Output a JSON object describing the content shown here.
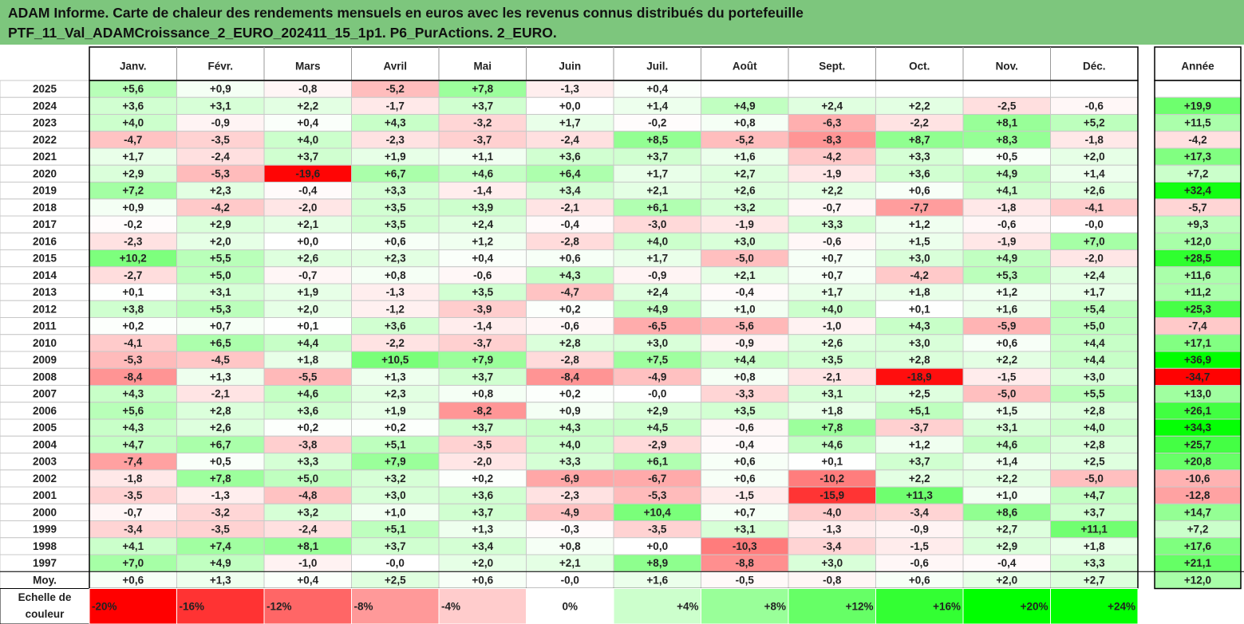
{
  "title": {
    "line1": "ADAM Informe. Carte de chaleur des rendements mensuels en euros avec les revenus connus distribués du portefeuille",
    "line2": "PTF_11_Val_ADAMCroissance_2_EURO_202411_15_1p1. P6_PurActions. 2_EURO."
  },
  "chart_data": {
    "type": "heatmap",
    "columns": [
      "Janv.",
      "Févr.",
      "Mars",
      "Avril",
      "Mai",
      "Juin",
      "Juil.",
      "Août",
      "Sept.",
      "Oct.",
      "Nov.",
      "Déc."
    ],
    "annual_column": "Année",
    "rows": [
      {
        "year": "2025",
        "values": [
          "+5,6",
          "+0,9",
          "-0,8",
          "-5,2",
          "+7,8",
          "-1,3",
          "+0,4",
          "",
          "",
          "",
          "",
          ""
        ],
        "annual": ""
      },
      {
        "year": "2024",
        "values": [
          "+3,6",
          "+3,1",
          "+2,2",
          "-1,7",
          "+3,7",
          "+0,0",
          "+1,4",
          "+4,9",
          "+2,4",
          "+2,2",
          "-2,5",
          "-0,6"
        ],
        "annual": "+19,9"
      },
      {
        "year": "2023",
        "values": [
          "+4,0",
          "-0,9",
          "+0,4",
          "+4,3",
          "-3,2",
          "+1,7",
          "-0,2",
          "+0,8",
          "-6,3",
          "-2,2",
          "+8,1",
          "+5,2"
        ],
        "annual": "+11,5"
      },
      {
        "year": "2022",
        "values": [
          "-4,7",
          "-3,5",
          "+4,0",
          "-2,3",
          "-3,7",
          "-2,4",
          "+8,5",
          "-5,2",
          "-8,3",
          "+8,7",
          "+8,3",
          "-1,8"
        ],
        "annual": "-4,2"
      },
      {
        "year": "2021",
        "values": [
          "+1,7",
          "-2,4",
          "+3,7",
          "+1,9",
          "+1,1",
          "+3,6",
          "+3,7",
          "+1,6",
          "-4,2",
          "+3,3",
          "+0,5",
          "+2,0"
        ],
        "annual": "+17,3"
      },
      {
        "year": "2020",
        "values": [
          "+2,9",
          "-5,3",
          "-19,6",
          "+6,7",
          "+4,6",
          "+6,4",
          "+1,7",
          "+2,7",
          "-1,9",
          "+3,6",
          "+4,9",
          "+1,4"
        ],
        "annual": "+7,2"
      },
      {
        "year": "2019",
        "values": [
          "+7,2",
          "+2,3",
          "-0,4",
          "+3,3",
          "-1,4",
          "+3,4",
          "+2,1",
          "+2,6",
          "+2,2",
          "+0,6",
          "+4,1",
          "+2,6"
        ],
        "annual": "+32,4"
      },
      {
        "year": "2018",
        "values": [
          "+0,9",
          "-4,2",
          "-2,0",
          "+3,5",
          "+3,9",
          "-2,1",
          "+6,1",
          "+3,2",
          "-0,7",
          "-7,7",
          "-1,8",
          "-4,1"
        ],
        "annual": "-5,7"
      },
      {
        "year": "2017",
        "values": [
          "-0,2",
          "+2,9",
          "+2,1",
          "+3,5",
          "+2,4",
          "-0,4",
          "-3,0",
          "-1,9",
          "+3,3",
          "+1,2",
          "-0,6",
          "-0,0"
        ],
        "annual": "+9,3"
      },
      {
        "year": "2016",
        "values": [
          "-2,3",
          "+2,0",
          "+0,0",
          "+0,6",
          "+1,2",
          "-2,8",
          "+4,0",
          "+3,0",
          "-0,6",
          "+1,5",
          "-1,9",
          "+7,0"
        ],
        "annual": "+12,0"
      },
      {
        "year": "2015",
        "values": [
          "+10,2",
          "+5,5",
          "+2,6",
          "+2,3",
          "+0,4",
          "+0,6",
          "+1,7",
          "-5,0",
          "+0,7",
          "+3,0",
          "+4,9",
          "-2,0"
        ],
        "annual": "+28,5"
      },
      {
        "year": "2014",
        "values": [
          "-2,7",
          "+5,0",
          "-0,7",
          "+0,8",
          "-0,6",
          "+4,3",
          "-0,9",
          "+2,1",
          "+0,7",
          "-4,2",
          "+5,3",
          "+2,4"
        ],
        "annual": "+11,6"
      },
      {
        "year": "2013",
        "values": [
          "+0,1",
          "+3,1",
          "+1,9",
          "-1,3",
          "+3,5",
          "-4,7",
          "+2,4",
          "-0,4",
          "+1,7",
          "+1,8",
          "+1,2",
          "+1,7"
        ],
        "annual": "+11,2"
      },
      {
        "year": "2012",
        "values": [
          "+3,8",
          "+5,3",
          "+2,0",
          "-1,2",
          "-3,9",
          "+0,2",
          "+4,9",
          "+1,0",
          "+4,0",
          "+0,1",
          "+1,6",
          "+5,4"
        ],
        "annual": "+25,3"
      },
      {
        "year": "2011",
        "values": [
          "+0,2",
          "+0,7",
          "+0,1",
          "+3,6",
          "-1,4",
          "-0,6",
          "-6,5",
          "-5,6",
          "-1,0",
          "+4,3",
          "-5,9",
          "+5,0"
        ],
        "annual": "-7,4"
      },
      {
        "year": "2010",
        "values": [
          "-4,1",
          "+6,5",
          "+4,4",
          "-2,2",
          "-3,7",
          "+2,8",
          "+3,0",
          "-0,9",
          "+2,6",
          "+3,0",
          "+0,6",
          "+4,4"
        ],
        "annual": "+17,1"
      },
      {
        "year": "2009",
        "values": [
          "-5,3",
          "-4,5",
          "+1,8",
          "+10,5",
          "+7,9",
          "-2,8",
          "+7,5",
          "+4,4",
          "+3,5",
          "+2,8",
          "+2,2",
          "+4,4"
        ],
        "annual": "+36,9"
      },
      {
        "year": "2008",
        "values": [
          "-8,4",
          "+1,3",
          "-5,5",
          "+1,3",
          "+3,7",
          "-8,4",
          "-4,9",
          "+0,8",
          "-2,1",
          "-18,9",
          "-1,5",
          "+3,0"
        ],
        "annual": "-34,7"
      },
      {
        "year": "2007",
        "values": [
          "+4,3",
          "-2,1",
          "+4,6",
          "+2,3",
          "+0,8",
          "+0,2",
          "-0,0",
          "-3,3",
          "+3,1",
          "+2,5",
          "-5,0",
          "+5,5"
        ],
        "annual": "+13,0"
      },
      {
        "year": "2006",
        "values": [
          "+5,6",
          "+2,8",
          "+3,6",
          "+1,9",
          "-8,2",
          "+0,9",
          "+2,9",
          "+3,5",
          "+1,8",
          "+5,1",
          "+1,5",
          "+2,8"
        ],
        "annual": "+26,1"
      },
      {
        "year": "2005",
        "values": [
          "+4,3",
          "+2,6",
          "+0,2",
          "+0,2",
          "+3,7",
          "+4,3",
          "+4,5",
          "-0,6",
          "+7,8",
          "-3,7",
          "+3,1",
          "+4,0"
        ],
        "annual": "+34,3"
      },
      {
        "year": "2004",
        "values": [
          "+4,7",
          "+6,7",
          "-3,8",
          "+5,1",
          "-3,5",
          "+4,0",
          "-2,9",
          "-0,4",
          "+4,6",
          "+1,2",
          "+4,6",
          "+2,8"
        ],
        "annual": "+25,7"
      },
      {
        "year": "2003",
        "values": [
          "-7,4",
          "+0,5",
          "+3,3",
          "+7,9",
          "-2,0",
          "+3,3",
          "+6,1",
          "+0,6",
          "+0,1",
          "+3,7",
          "+1,4",
          "+2,5"
        ],
        "annual": "+20,8"
      },
      {
        "year": "2002",
        "values": [
          "-1,8",
          "+7,8",
          "+5,0",
          "+3,2",
          "+0,2",
          "-6,9",
          "-6,7",
          "+0,6",
          "-10,2",
          "+2,2",
          "+2,2",
          "-5,0"
        ],
        "annual": "-10,6"
      },
      {
        "year": "2001",
        "values": [
          "-3,5",
          "-1,3",
          "-4,8",
          "+3,0",
          "+3,6",
          "-2,3",
          "-5,3",
          "-1,5",
          "-15,9",
          "+11,3",
          "+1,0",
          "+4,7"
        ],
        "annual": "-12,8"
      },
      {
        "year": "2000",
        "values": [
          "-0,7",
          "-3,2",
          "+3,2",
          "+1,0",
          "+3,7",
          "-4,9",
          "+10,4",
          "+0,7",
          "-4,0",
          "-3,4",
          "+8,6",
          "+3,7"
        ],
        "annual": "+14,7"
      },
      {
        "year": "1999",
        "values": [
          "-3,4",
          "-3,5",
          "-2,4",
          "+5,1",
          "+1,3",
          "-0,3",
          "-3,5",
          "+3,1",
          "-1,3",
          "-0,9",
          "+2,7",
          "+11,1"
        ],
        "annual": "+7,2"
      },
      {
        "year": "1998",
        "values": [
          "+4,1",
          "+7,4",
          "+8,1",
          "+3,7",
          "+3,4",
          "+0,8",
          "+0,0",
          "-10,3",
          "-3,4",
          "-1,5",
          "+2,9",
          "+1,8"
        ],
        "annual": "+17,6"
      },
      {
        "year": "1997",
        "values": [
          "+7,0",
          "+4,9",
          "-1,0",
          "-0,0",
          "+2,0",
          "+2,1",
          "+8,9",
          "-8,8",
          "+3,0",
          "-0,6",
          "-0,4",
          "+3,3"
        ],
        "annual": "+21,1"
      }
    ],
    "average": {
      "label": "Moy.",
      "values": [
        "+0,6",
        "+1,3",
        "+0,4",
        "+2,5",
        "+0,6",
        "-0,0",
        "+1,6",
        "-0,5",
        "-0,8",
        "+0,6",
        "+2,0",
        "+2,7"
      ],
      "annual": "+12,0"
    },
    "scale": {
      "label_line1": "Echelle de",
      "label_line2": "couleur",
      "steps": [
        {
          "label": "-20%",
          "value": -20
        },
        {
          "label": "-16%",
          "value": -16
        },
        {
          "label": "-12%",
          "value": -12
        },
        {
          "label": "-8%",
          "value": -8
        },
        {
          "label": "-4%",
          "value": -4
        },
        {
          "label": "0%",
          "value": 0
        },
        {
          "label": "+4%",
          "value": 4
        },
        {
          "label": "+8%",
          "value": 8
        },
        {
          "label": "+12%",
          "value": 12
        },
        {
          "label": "+16%",
          "value": 16
        },
        {
          "label": "+20%",
          "value": 20
        },
        {
          "label": "+24%",
          "value": 24
        }
      ]
    },
    "colors": {
      "title_band": "#7dc67d",
      "negative_max": "#ff0000",
      "positive_max": "#00ff00",
      "neutral": "#ffffff"
    }
  }
}
